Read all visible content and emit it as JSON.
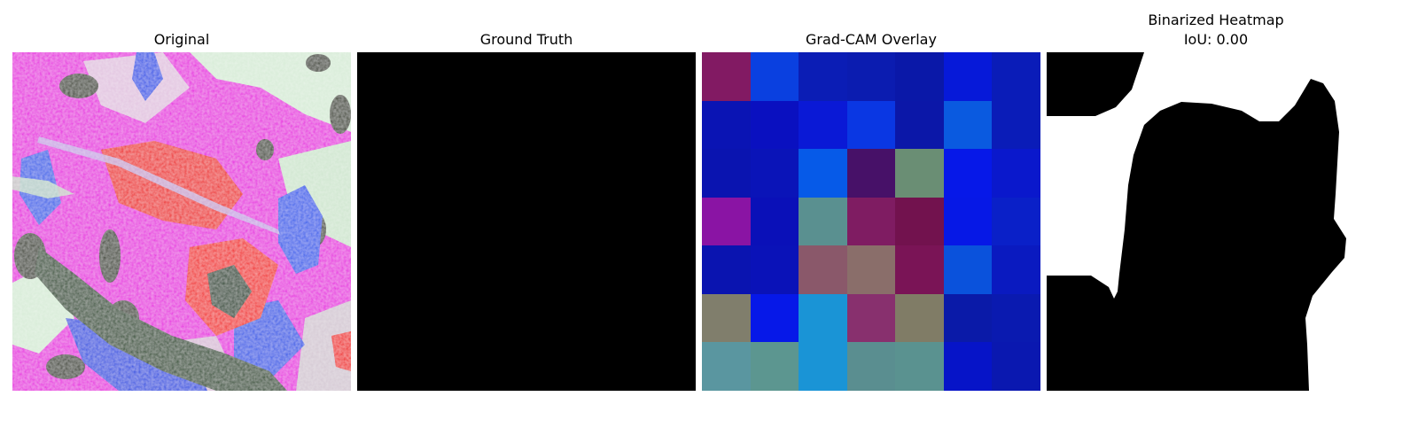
{
  "panels": {
    "original": {
      "title": "Original"
    },
    "ground_truth": {
      "title": "Ground Truth"
    },
    "gradcam": {
      "title": "Grad-CAM Overlay"
    },
    "binarized": {
      "title_line1": "Binarized Heatmap",
      "title_line2": "IoU: 0.00"
    }
  },
  "colors": {
    "background": "#ffffff",
    "ground_truth_fill": "#000000",
    "mask_black": "#000000",
    "mask_white": "#ffffff"
  },
  "gradcam_grid": [
    [
      "#821a63",
      "#0a40e0",
      "#0b1db5",
      "#0b1cb0",
      "#0a18a8",
      "#0619d9",
      "#0a1cb8"
    ],
    [
      "#0a14b4",
      "#0a10c0",
      "#0a19d6",
      "#0a37e3",
      "#0b17a8",
      "#0a5ae0",
      "#0a1cb8"
    ],
    [
      "#0a14b0",
      "#0a14b8",
      "#065ae8",
      "#471168",
      "#6a8e74",
      "#0618e8",
      "#0a18cc"
    ],
    [
      "#8a14a4",
      "#0a10b8",
      "#5a9090",
      "#7f1c62",
      "#72124e",
      "#0618e6",
      "#0a20c8"
    ],
    [
      "#0a14b0",
      "#0a12b8",
      "#8a586a",
      "#8a6e6a",
      "#7a1456",
      "#0a52dc",
      "#0a1ac0"
    ],
    [
      "#807e6c",
      "#0618e8",
      "#1a94d6",
      "#88306e",
      "#807c66",
      "#0a1aa8",
      "#0a1ab0"
    ],
    [
      "#5a96a0",
      "#5c9690",
      "#1a94d6",
      "#5a8e90",
      "#5a9290",
      "#0614c8",
      "#0a18b0"
    ]
  ]
}
